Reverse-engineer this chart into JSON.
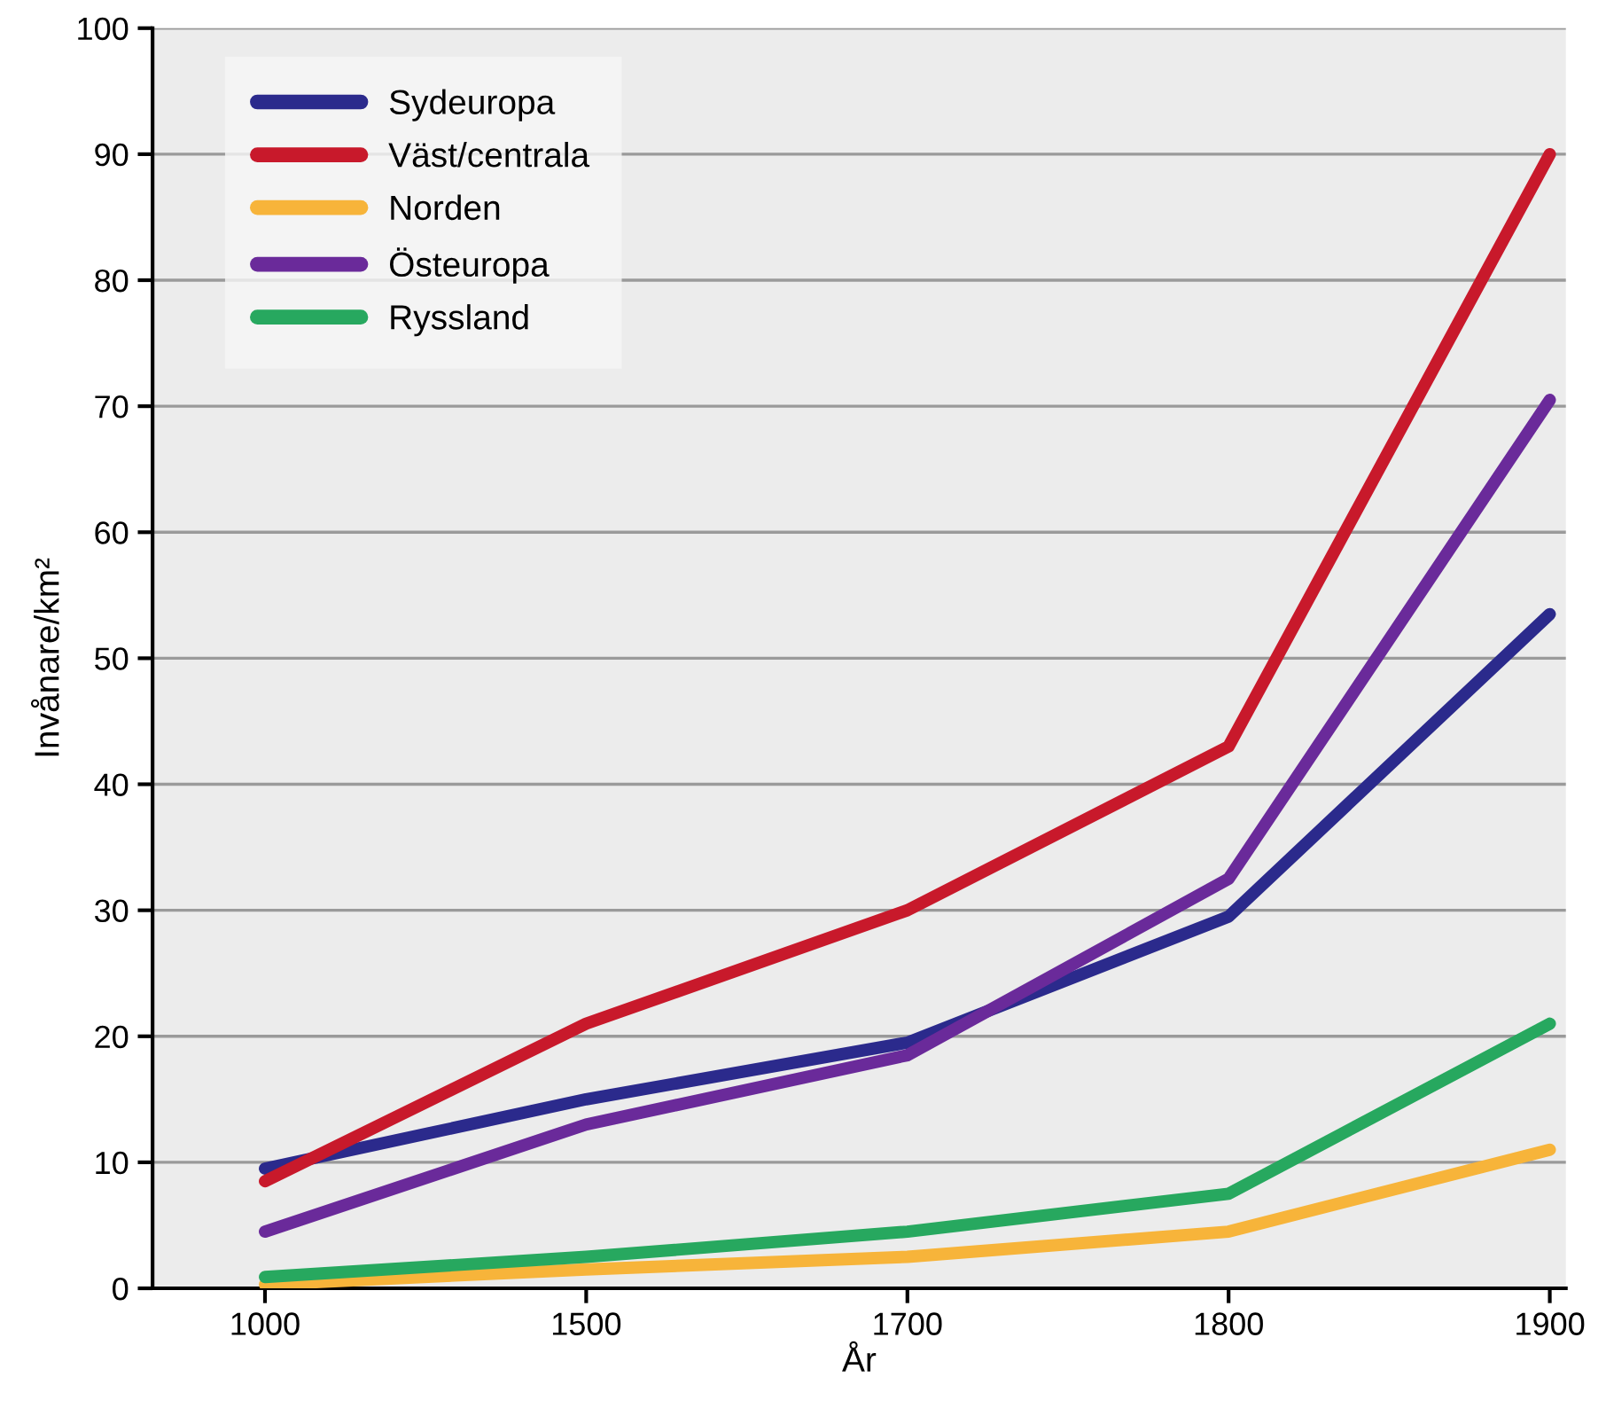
{
  "chart_data": {
    "type": "line",
    "xlabel": "År",
    "ylabel": "Invånare/km²",
    "categories": [
      "1000",
      "1500",
      "1700",
      "1800",
      "1900"
    ],
    "series": [
      {
        "name": "Sydeuropa",
        "color": "#2b2a8c",
        "values": [
          9.5,
          15,
          19.5,
          29.5,
          53.5
        ]
      },
      {
        "name": "Väst/centrala",
        "color": "#c8192b",
        "values": [
          8.5,
          21,
          30,
          43,
          90
        ]
      },
      {
        "name": "Norden",
        "color": "#f7b43a",
        "values": [
          0.3,
          1.5,
          2.5,
          4.5,
          11
        ]
      },
      {
        "name": "Östeuropa",
        "color": "#6a2a9a",
        "values": [
          4.5,
          13,
          18.5,
          32.5,
          70.5
        ]
      },
      {
        "name": "Ryssland",
        "color": "#27a85f",
        "values": [
          0.9,
          2.5,
          4.5,
          7.5,
          21
        ]
      }
    ],
    "ylim": [
      0,
      100
    ],
    "yticks": [
      0,
      10,
      20,
      30,
      40,
      50,
      60,
      70,
      80,
      90,
      100
    ],
    "grid": "y",
    "legend": "top left",
    "marker": "none",
    "line_style": "solid"
  }
}
